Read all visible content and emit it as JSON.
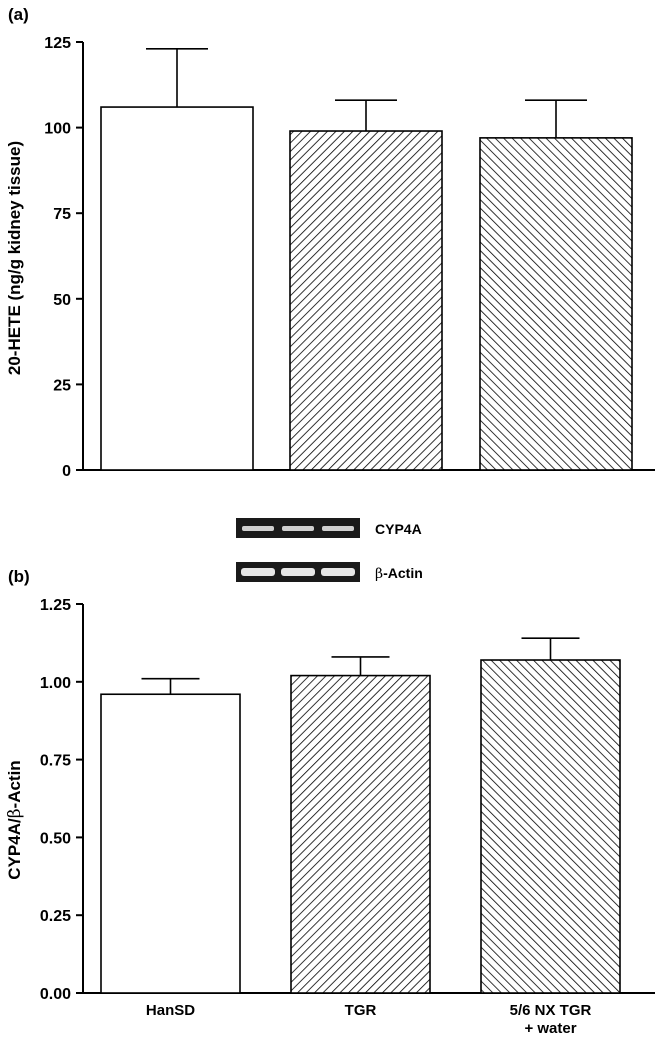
{
  "chart_data": [
    {
      "panel": "(a)",
      "type": "bar",
      "ylabel": "20-HETE (ng/g kidney tissue)",
      "ylim": [
        0,
        125
      ],
      "yticks": [
        "0",
        "25",
        "50",
        "75",
        "100",
        "125"
      ],
      "yticks_values": [
        0,
        25,
        50,
        75,
        100,
        125
      ],
      "categories": [
        "HanSD",
        "TGR",
        "5/6 NX TGR + water"
      ],
      "values": [
        106,
        99,
        97
      ],
      "errors": [
        17,
        9,
        11
      ],
      "patterns": [
        "none",
        "hatch-right",
        "hatch-left"
      ],
      "show_xticklabels": false
    },
    {
      "panel": "(b)",
      "type": "bar",
      "ylabel_prefix": "CYP4A/",
      "ylabel_beta": "β",
      "ylabel_suffix": "-Actin",
      "ylim": [
        0,
        1.25
      ],
      "yticks": [
        "0.00",
        "0.25",
        "0.50",
        "0.75",
        "1.00",
        "1.25"
      ],
      "yticks_values": [
        0,
        0.25,
        0.5,
        0.75,
        1.0,
        1.25
      ],
      "categories": [
        "HanSD",
        "TGR",
        "5/6 NX TGR + water"
      ],
      "category_lines": [
        [
          "HanSD"
        ],
        [
          "TGR"
        ],
        [
          "5/6 NX TGR",
          "+ water"
        ]
      ],
      "values": [
        0.96,
        1.02,
        1.07
      ],
      "errors": [
        0.05,
        0.06,
        0.07
      ],
      "patterns": [
        "none",
        "hatch-right",
        "hatch-left"
      ],
      "show_xticklabels": true
    }
  ],
  "blots": {
    "band1_label": "CYP4A",
    "band2_beta": "β",
    "band2_label": "-Actin"
  }
}
